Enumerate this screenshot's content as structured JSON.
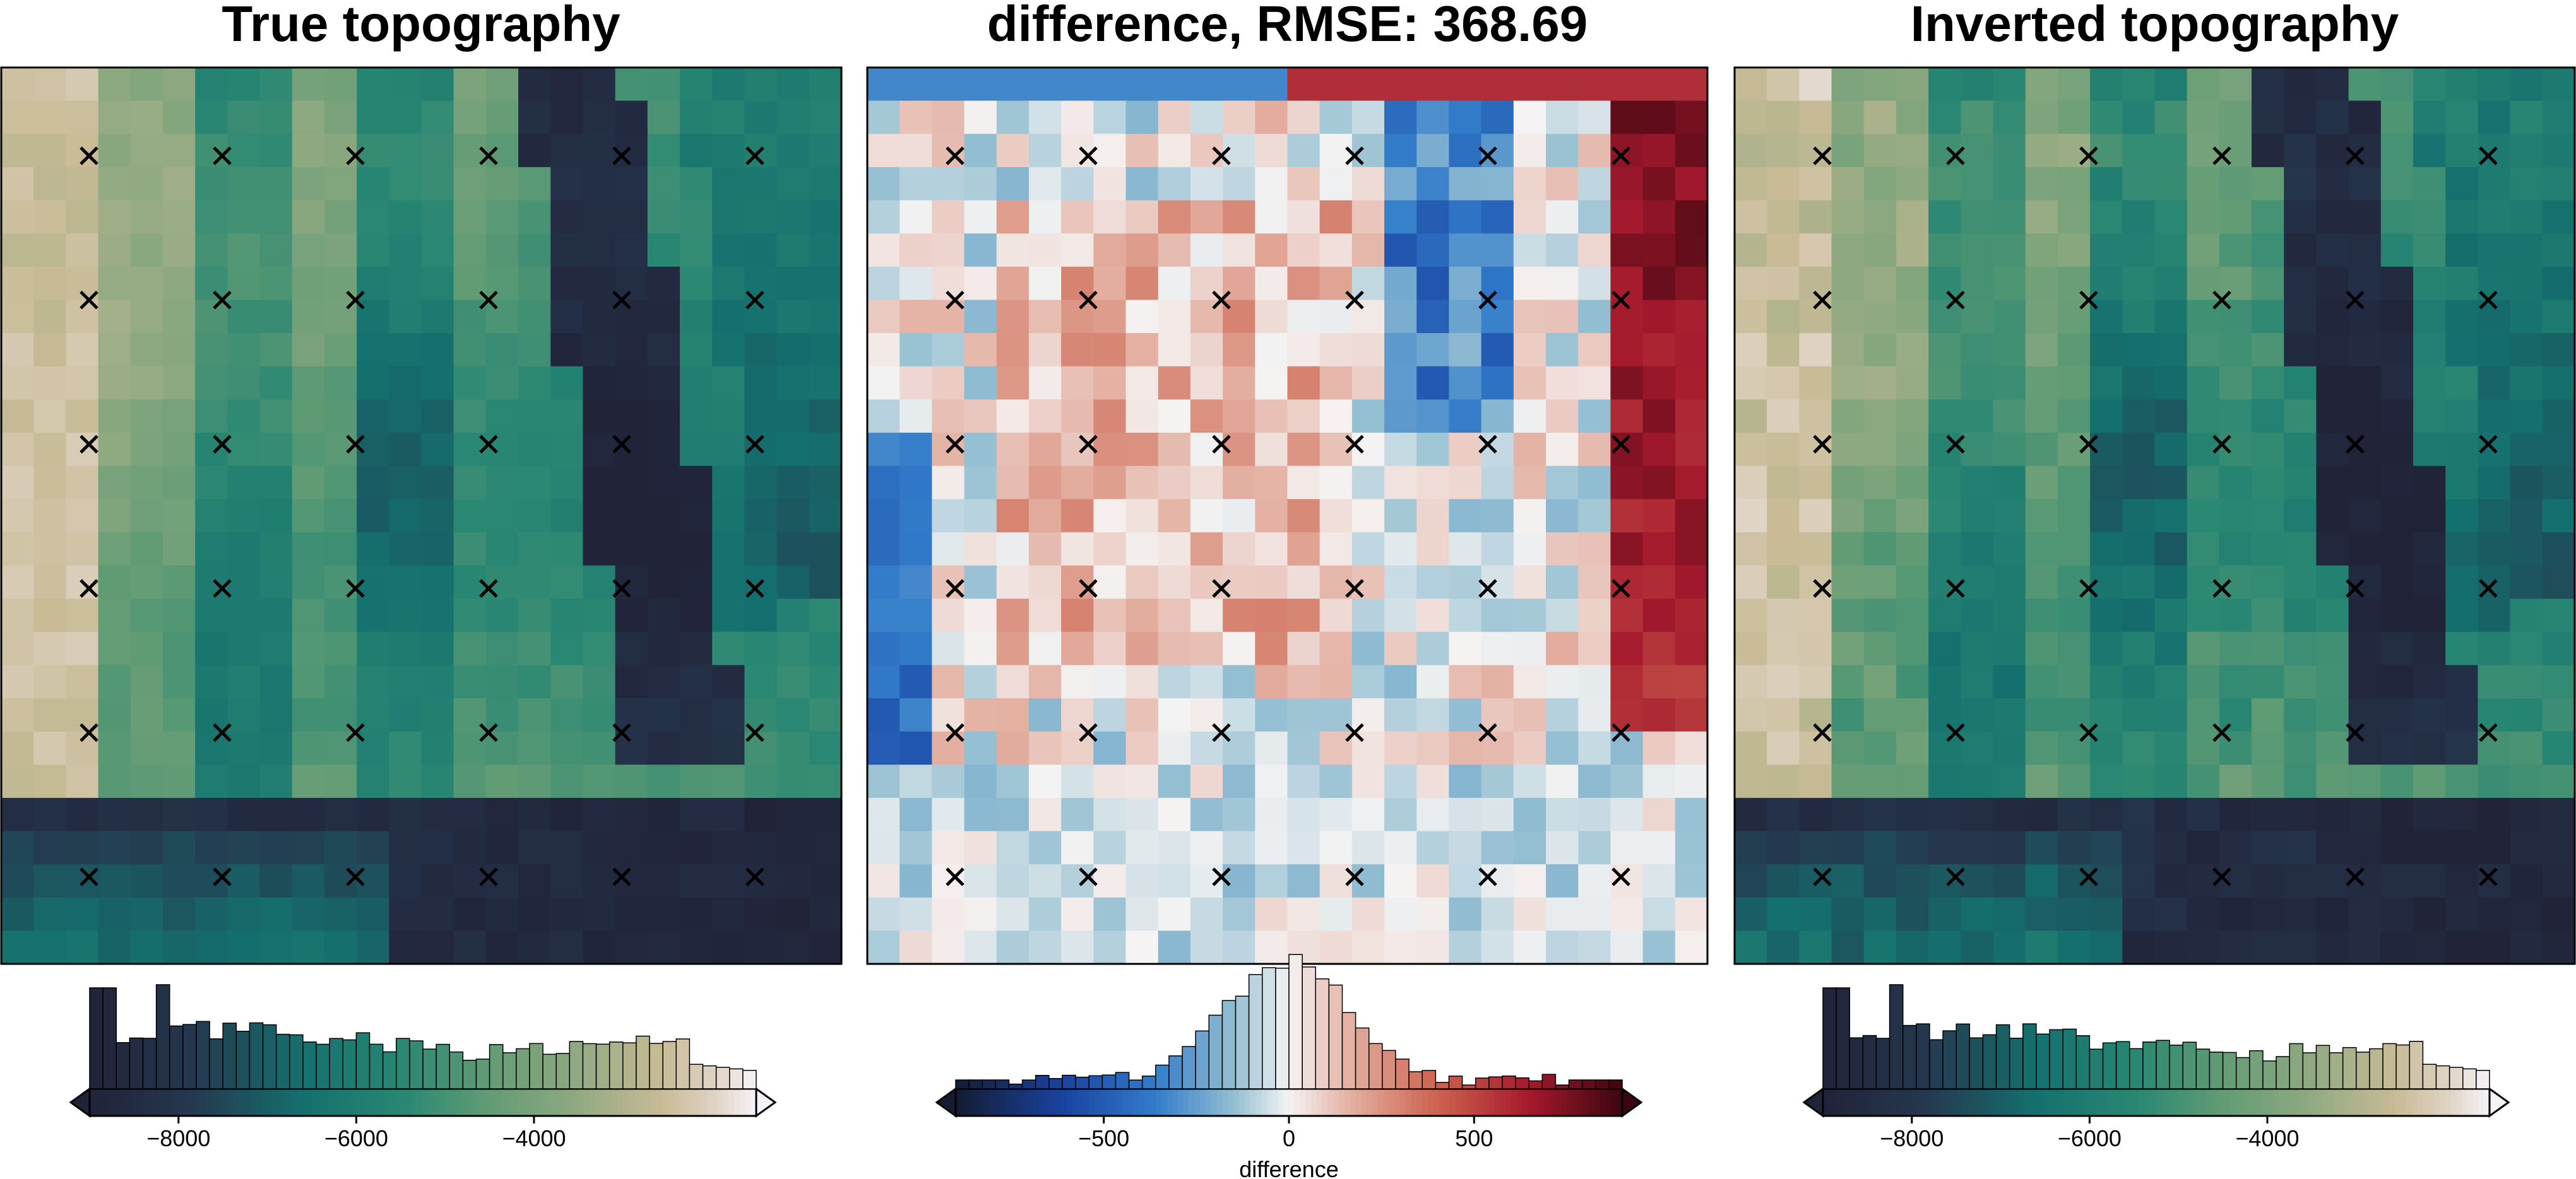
{
  "chart_data": [
    {
      "type": "heatmap",
      "title": "True topography",
      "grid": {
        "rows": 27,
        "cols": 26
      },
      "colormap": "topography (dark navy - teal - green - tan - white)",
      "value_range": [
        -9000,
        -1500
      ],
      "observation_points": {
        "marker": "x",
        "rows": 6,
        "cols": 6
      },
      "colorbar": {
        "ticks": [
          "−8000",
          "−6000",
          "−4000"
        ],
        "tick_values": [
          -8000,
          -6000,
          -4000
        ],
        "label": "",
        "extend": "both",
        "histogram": true,
        "range": [
          -9000,
          -1500
        ]
      }
    },
    {
      "type": "heatmap",
      "title": "difference, RMSE: 368.69",
      "grid": {
        "rows": 27,
        "cols": 26
      },
      "colormap": "diverging (blue - white - red)",
      "value_range": [
        -900,
        900
      ],
      "observation_points": {
        "marker": "x",
        "rows": 6,
        "cols": 6
      },
      "colorbar": {
        "ticks": [
          "−500",
          "0",
          "500"
        ],
        "tick_values": [
          -500,
          0,
          500
        ],
        "label": "difference",
        "extend": "both",
        "histogram": true,
        "range": [
          -900,
          900
        ]
      }
    },
    {
      "type": "heatmap",
      "title": "Inverted topography",
      "grid": {
        "rows": 27,
        "cols": 26
      },
      "colormap": "topography (dark navy - teal - green - tan - white)",
      "value_range": [
        -9000,
        -1500
      ],
      "observation_points": {
        "marker": "x",
        "rows": 6,
        "cols": 6
      },
      "colorbar": {
        "ticks": [
          "−8000",
          "−6000",
          "−4000"
        ],
        "tick_values": [
          -8000,
          -6000,
          -4000
        ],
        "label": "",
        "extend": "both",
        "histogram": true,
        "range": [
          -9000,
          -1500
        ]
      }
    }
  ]
}
